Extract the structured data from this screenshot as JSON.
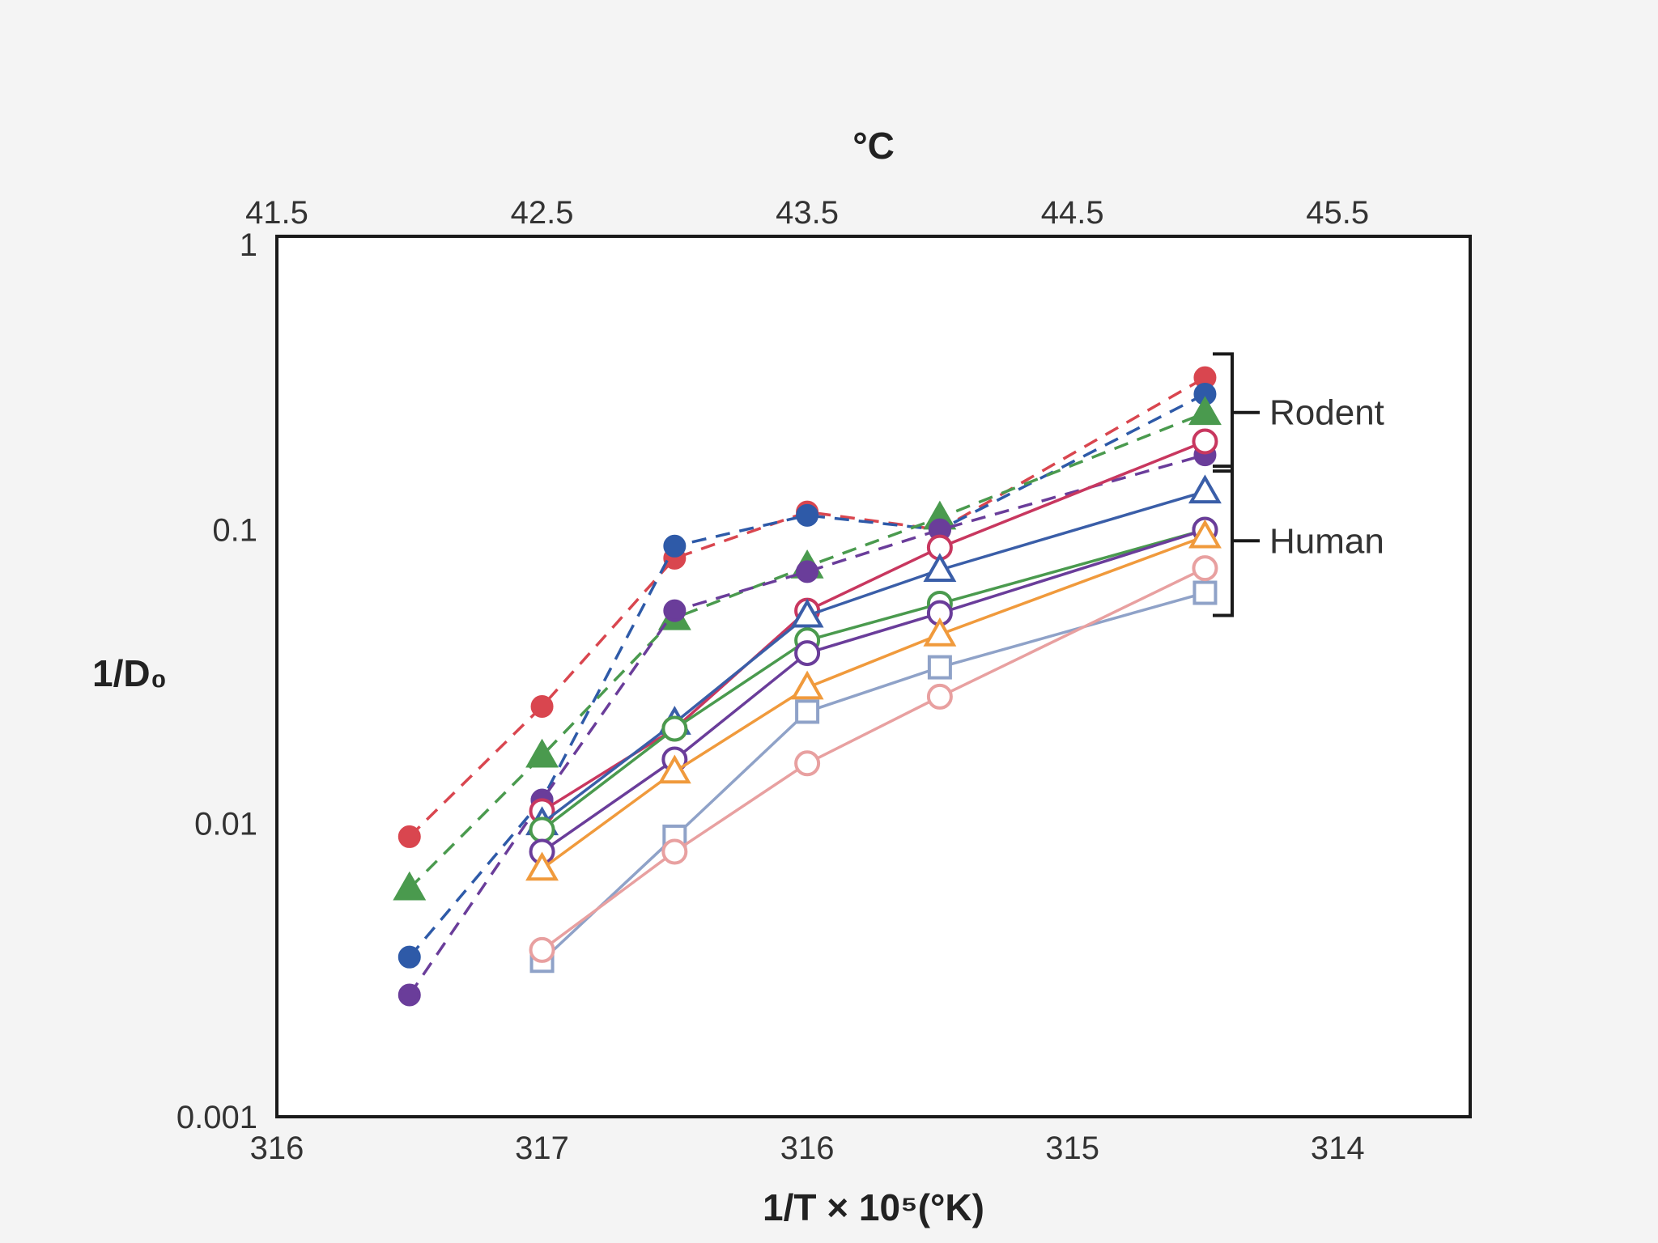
{
  "chart_data": {
    "type": "line",
    "title": "",
    "top_axis_label": "°C",
    "top_ticks": [
      "41.5",
      "42.5",
      "43.5",
      "44.5",
      "45.5"
    ],
    "bottom_axis_label": "1/T × 10⁵(°K)",
    "bottom_ticks": [
      "316",
      "317",
      "316",
      "315",
      "314"
    ],
    "ylabel": "1/D₀",
    "y_scale": "log",
    "ylim": [
      0.001,
      1
    ],
    "y_ticks": [
      {
        "value": 0.001,
        "label": "0.001"
      },
      {
        "value": 0.01,
        "label": "0.01"
      },
      {
        "value": 0.1,
        "label": "0.1"
      },
      {
        "value": 1,
        "label": "1"
      }
    ],
    "xlim": [
      41.5,
      46.0
    ],
    "x_units": "°C",
    "grid": false,
    "legend": "none",
    "groups": [
      {
        "label": "Rodent",
        "y_range": [
          0.18,
          0.35
        ]
      },
      {
        "label": "Human",
        "y_range": [
          0.058,
          0.145
        ]
      }
    ],
    "series": [
      {
        "group": "Rodent",
        "color": "#d9464f",
        "marker": "filled-circle",
        "line": "dashed",
        "x": [
          42.0,
          42.5,
          43.0,
          43.5,
          44.0,
          45.0
        ],
        "y": [
          0.009,
          0.025,
          0.08,
          0.115,
          0.1,
          0.33
        ]
      },
      {
        "group": "Rodent",
        "color": "#2e5aa8",
        "marker": "filled-circle",
        "line": "dashed",
        "x": [
          42.0,
          42.5,
          43.0,
          43.5,
          44.0,
          45.0
        ],
        "y": [
          0.0035,
          0.012,
          0.088,
          0.112,
          0.1,
          0.29
        ]
      },
      {
        "group": "Rodent",
        "color": "#4a9a4e",
        "marker": "filled-triangle",
        "line": "dashed",
        "x": [
          42.0,
          42.5,
          43.0,
          43.5,
          44.0,
          45.0
        ],
        "y": [
          0.006,
          0.017,
          0.05,
          0.075,
          0.11,
          0.25
        ]
      },
      {
        "group": "Rodent",
        "color": "#6a3d9a",
        "marker": "filled-circle",
        "line": "dashed",
        "x": [
          42.0,
          42.5,
          43.0,
          43.5,
          44.0,
          45.0
        ],
        "y": [
          0.0026,
          0.012,
          0.053,
          0.072,
          0.1,
          0.18
        ]
      },
      {
        "group": "Human",
        "color": "#c8375f",
        "marker": "open-circle",
        "line": "solid",
        "x": [
          42.5,
          43.0,
          43.5,
          44.0,
          45.0
        ],
        "y": [
          0.011,
          0.021,
          0.053,
          0.087,
          0.2
        ]
      },
      {
        "group": "Human",
        "color": "#3a5ea8",
        "marker": "open-triangle",
        "line": "solid",
        "x": [
          42.5,
          43.0,
          43.5,
          44.0,
          45.0
        ],
        "y": [
          0.01,
          0.022,
          0.051,
          0.073,
          0.135
        ]
      },
      {
        "group": "Human",
        "color": "#4a9a4e",
        "marker": "open-circle",
        "line": "solid",
        "x": [
          42.5,
          43.0,
          43.5,
          44.0,
          45.0
        ],
        "y": [
          0.0095,
          0.021,
          0.042,
          0.056,
          0.1
        ]
      },
      {
        "group": "Human",
        "color": "#6a3d9a",
        "marker": "open-circle",
        "line": "solid",
        "x": [
          42.5,
          43.0,
          43.5,
          44.0,
          45.0
        ],
        "y": [
          0.008,
          0.0165,
          0.038,
          0.052,
          0.1
        ]
      },
      {
        "group": "Human",
        "color": "#f09a3c",
        "marker": "open-triangle",
        "line": "solid",
        "x": [
          42.5,
          43.0,
          43.5,
          44.0,
          45.0
        ],
        "y": [
          0.007,
          0.015,
          0.029,
          0.044,
          0.095
        ]
      },
      {
        "group": "Human",
        "color": "#8fa2c8",
        "marker": "open-square",
        "line": "solid",
        "x": [
          42.5,
          43.0,
          43.5,
          44.0,
          45.0
        ],
        "y": [
          0.0034,
          0.009,
          0.024,
          0.034,
          0.061
        ]
      },
      {
        "group": "Human",
        "color": "#e8a0a0",
        "marker": "open-circle",
        "line": "solid",
        "x": [
          42.5,
          43.0,
          43.5,
          44.0,
          45.0
        ],
        "y": [
          0.0037,
          0.008,
          0.016,
          0.027,
          0.074
        ]
      }
    ]
  }
}
